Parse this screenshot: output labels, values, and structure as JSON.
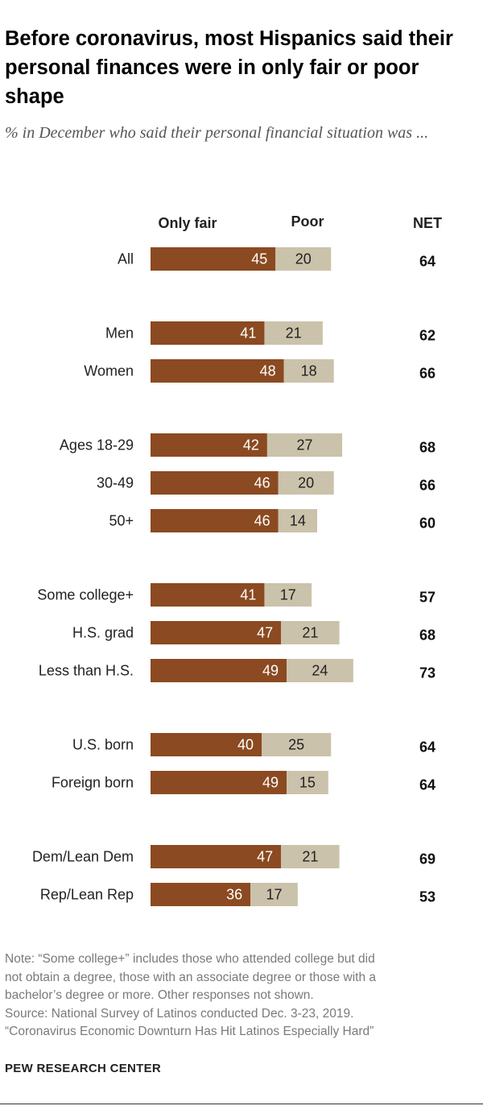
{
  "chart_data": {
    "type": "stacked-bar",
    "title": "Before coronavirus, most Hispanics said their personal finances were in only fair or poor shape",
    "subtitle": "% in December who said their personal financial situation was ...",
    "series_labels": {
      "fair": "Only fair",
      "poor": "Poor"
    },
    "net_label": "NET",
    "colors": {
      "fair": "#8b4a21",
      "poor": "#cbc2ab"
    },
    "groups": [
      {
        "name": "all",
        "rows": [
          {
            "label": "All",
            "fair": 45,
            "poor": 20,
            "net": 64
          }
        ]
      },
      {
        "name": "gender",
        "rows": [
          {
            "label": "Men",
            "fair": 41,
            "poor": 21,
            "net": 62
          },
          {
            "label": "Women",
            "fair": 48,
            "poor": 18,
            "net": 66
          }
        ]
      },
      {
        "name": "age",
        "rows": [
          {
            "label": "Ages 18-29",
            "fair": 42,
            "poor": 27,
            "net": 68
          },
          {
            "label": "30-49",
            "fair": 46,
            "poor": 20,
            "net": 66
          },
          {
            "label": "50+",
            "fair": 46,
            "poor": 14,
            "net": 60
          }
        ]
      },
      {
        "name": "education",
        "rows": [
          {
            "label": "Some college+",
            "fair": 41,
            "poor": 17,
            "net": 57
          },
          {
            "label": "H.S. grad",
            "fair": 47,
            "poor": 21,
            "net": 68
          },
          {
            "label": "Less than H.S.",
            "fair": 49,
            "poor": 24,
            "net": 73
          }
        ]
      },
      {
        "name": "nativity",
        "rows": [
          {
            "label": "U.S. born",
            "fair": 40,
            "poor": 25,
            "net": 64
          },
          {
            "label": "Foreign born",
            "fair": 49,
            "poor": 15,
            "net": 64
          }
        ]
      },
      {
        "name": "party",
        "rows": [
          {
            "label": "Dem/Lean Dem",
            "fair": 47,
            "poor": 21,
            "net": 69
          },
          {
            "label": "Rep/Lean Rep",
            "fair": 36,
            "poor": 17,
            "net": 53
          }
        ]
      }
    ]
  },
  "notes": {
    "note_lines": [
      "Note: “Some college+” includes those who attended college but did",
      "not obtain a degree, those with an associate degree or those with a",
      "bachelor’s degree or more. Other responses not shown."
    ],
    "source": "Source: National Survey of Latinos conducted Dec. 3-23, 2019.",
    "report": "“Coronavirus Economic Downturn Has Hit Latinos Especially Hard”"
  },
  "brand": "PEW RESEARCH CENTER"
}
